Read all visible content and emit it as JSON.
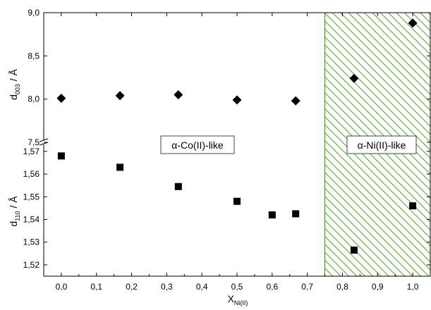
{
  "chart_data": {
    "type": "scatter",
    "title": "",
    "xlabel": {
      "main": "X",
      "sub": "Ni(II)"
    },
    "x_ticks": [
      "0,0",
      "0,1",
      "0,2",
      "0,3",
      "0,4",
      "0,5",
      "0,6",
      "0,7",
      "0,8",
      "0,9",
      "1,0"
    ],
    "xlim": [
      -0.05,
      1.05
    ],
    "panels": [
      {
        "ylabel": {
          "main": "d",
          "sub": "003",
          "unit": " / Å"
        },
        "ylim": [
          7.5,
          9.0
        ],
        "y_ticks": [
          "7,5",
          "8,0",
          "8,5",
          "9,0"
        ],
        "marker": "diamond",
        "x": [
          0.0,
          0.167,
          0.333,
          0.5,
          0.667,
          0.833,
          1.0
        ],
        "y": [
          8.01,
          8.04,
          8.05,
          7.99,
          7.98,
          8.24,
          8.88
        ]
      },
      {
        "ylabel": {
          "main": "d",
          "sub": "110",
          "unit": " / Å"
        },
        "ylim": [
          1.515,
          1.574
        ],
        "y_ticks": [
          "1,52",
          "1,53",
          "1,54",
          "1,55",
          "1,56",
          "1,57"
        ],
        "marker": "square",
        "x": [
          0.0,
          0.167,
          0.333,
          0.5,
          0.6,
          0.667,
          0.833,
          1.0
        ],
        "y": [
          1.568,
          1.563,
          1.5545,
          1.548,
          1.542,
          1.5425,
          1.5265,
          1.546
        ]
      }
    ],
    "regions": [
      {
        "label": "α-Co(II)-like",
        "x_from": -0.05,
        "x_to": 0.75,
        "fill": "none"
      },
      {
        "label": "α-Ni(II)-like",
        "x_from": 0.75,
        "x_to": 1.05,
        "fill": "hatched",
        "color": "#5aa832"
      }
    ],
    "grid": false,
    "legend": "none"
  }
}
